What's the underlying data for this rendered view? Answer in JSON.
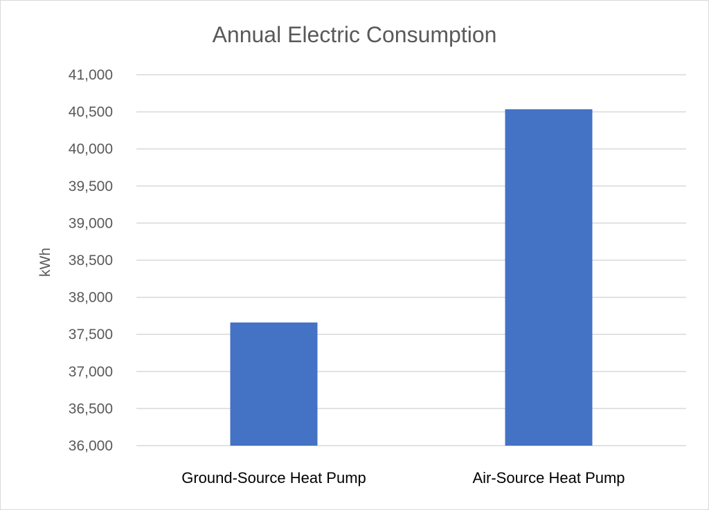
{
  "chart_data": {
    "type": "bar",
    "title": "Annual Electric Consumption",
    "xlabel": "",
    "ylabel": "kWh",
    "categories": [
      "Ground-Source Heat Pump",
      "Air-Source Heat Pump"
    ],
    "values": [
      37660,
      40535
    ],
    "ylim": [
      36000,
      41000
    ],
    "yticks": [
      36000,
      36500,
      37000,
      37500,
      38000,
      38500,
      39000,
      39500,
      40000,
      40500,
      41000
    ],
    "ytick_labels": [
      "36,000",
      "36,500",
      "37,000",
      "37,500",
      "38,000",
      "38,500",
      "39,000",
      "39,500",
      "40,000",
      "40,500",
      "41,000"
    ],
    "grid": true,
    "legend": "none",
    "colors": {
      "bar": "#4472C4",
      "grid": "#D9D9D9",
      "text": "#595959"
    }
  }
}
